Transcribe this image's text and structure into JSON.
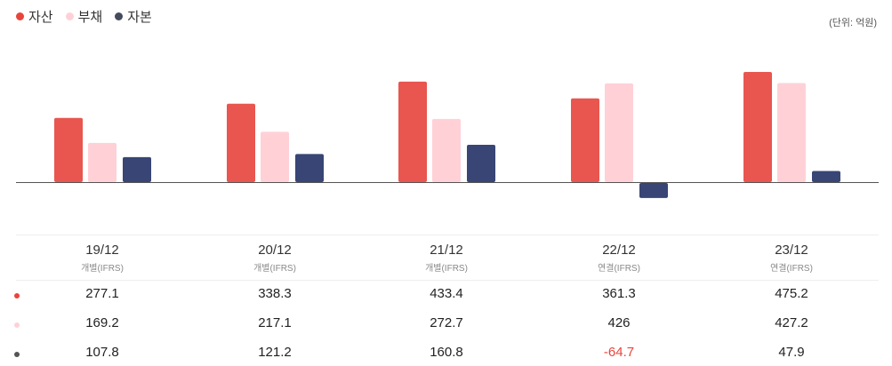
{
  "legend": [
    {
      "label": "자산",
      "color": "#e8453c"
    },
    {
      "label": "부채",
      "color": "#ffd1d7"
    },
    {
      "label": "자본",
      "color": "#444b5c"
    }
  ],
  "unit_label": "(단위: 억원)",
  "chart_data": {
    "type": "bar",
    "categories": [
      "19/12",
      "20/12",
      "21/12",
      "22/12",
      "23/12"
    ],
    "category_types": [
      "개별(IFRS)",
      "개별(IFRS)",
      "개별(IFRS)",
      "연결(IFRS)",
      "연결(IFRS)"
    ],
    "series": [
      {
        "name": "자산",
        "color": "#e8564f",
        "values": [
          277.1,
          338.3,
          433.4,
          361.3,
          475.2
        ]
      },
      {
        "name": "부채",
        "color": "#ffd1d7",
        "values": [
          169.2,
          217.1,
          272.7,
          426,
          427.2
        ]
      },
      {
        "name": "자본",
        "color": "#384575",
        "values": [
          107.8,
          121.2,
          160.8,
          -64.7,
          47.9
        ]
      }
    ],
    "ylim": [
      -70,
      475.2
    ],
    "title": "",
    "xlabel": "",
    "ylabel": ""
  },
  "table": {
    "rows": [
      {
        "dot_color": "#e8453c",
        "cells": [
          "277.1",
          "338.3",
          "433.4",
          "361.3",
          "475.2"
        ]
      },
      {
        "dot_color": "#ffd1d7",
        "cells": [
          "169.2",
          "217.1",
          "272.7",
          "426",
          "427.2"
        ]
      },
      {
        "dot_color": "#555555",
        "cells": [
          "107.8",
          "121.2",
          "160.8",
          "-64.7",
          "47.9"
        ]
      }
    ],
    "negative_color": "#e8453c"
  }
}
